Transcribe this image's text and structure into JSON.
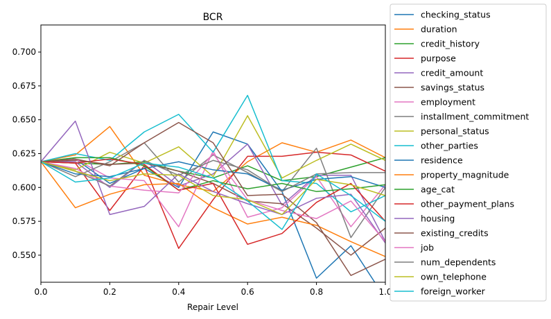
{
  "chart_data": {
    "type": "line",
    "title": "BCR",
    "xlabel": "Repair Level",
    "ylabel": "",
    "xlim": [
      0.0,
      1.0
    ],
    "ylim": [
      0.53,
      0.72
    ],
    "xticks": [
      "0.0",
      "0.2",
      "0.4",
      "0.6",
      "0.8",
      "1.0"
    ],
    "yticks": [
      "0.550",
      "0.575",
      "0.600",
      "0.625",
      "0.650",
      "0.675",
      "0.700"
    ],
    "grid": false,
    "legend_position": "outside-right",
    "x": [
      0.0,
      0.1,
      0.2,
      0.3,
      0.4,
      0.5,
      0.6,
      0.7,
      0.8,
      0.9,
      1.0
    ],
    "series": [
      {
        "name": "checking_status",
        "color": "#1f77b4",
        "values": [
          0.619,
          0.621,
          0.603,
          0.614,
          0.6,
          0.641,
          0.632,
          0.597,
          0.533,
          0.557,
          0.518
        ]
      },
      {
        "name": "duration",
        "color": "#ff7f0e",
        "values": [
          0.619,
          0.624,
          0.645,
          0.609,
          0.602,
          0.597,
          0.619,
          0.633,
          0.626,
          0.635,
          0.622
        ]
      },
      {
        "name": "credit_history",
        "color": "#2ca02c",
        "values": [
          0.619,
          0.618,
          0.617,
          0.619,
          0.612,
          0.607,
          0.616,
          0.605,
          0.608,
          0.615,
          0.622
        ]
      },
      {
        "name": "purpose",
        "color": "#d62728",
        "values": [
          0.619,
          0.618,
          0.583,
          0.616,
          0.555,
          0.591,
          0.623,
          0.623,
          0.626,
          0.624,
          0.612
        ]
      },
      {
        "name": "credit_amount",
        "color": "#9467bd",
        "values": [
          0.619,
          0.619,
          0.6,
          0.62,
          0.601,
          0.61,
          0.632,
          0.587,
          0.609,
          0.609,
          0.56
        ]
      },
      {
        "name": "savings_status",
        "color": "#8c564b",
        "values": [
          0.619,
          0.62,
          0.617,
          0.618,
          0.612,
          0.603,
          0.59,
          0.588,
          0.57,
          0.55,
          0.57
        ]
      },
      {
        "name": "employment",
        "color": "#e377c2",
        "values": [
          0.619,
          0.621,
          0.607,
          0.605,
          0.571,
          0.627,
          0.578,
          0.585,
          0.608,
          0.571,
          0.602
        ]
      },
      {
        "name": "installment_commitment",
        "color": "#7f7f7f",
        "values": [
          0.619,
          0.608,
          0.619,
          0.633,
          0.604,
          0.624,
          0.611,
          0.597,
          0.629,
          0.563,
          0.6
        ]
      },
      {
        "name": "personal_status",
        "color": "#bcbd22",
        "values": [
          0.619,
          0.613,
          0.626,
          0.618,
          0.63,
          0.608,
          0.653,
          0.607,
          0.62,
          0.632,
          0.62
        ]
      },
      {
        "name": "other_parties",
        "color": "#17becf",
        "values": [
          0.619,
          0.625,
          0.62,
          0.641,
          0.654,
          0.626,
          0.668,
          0.605,
          0.603,
          0.582,
          0.594
        ]
      },
      {
        "name": "residence",
        "color": "#1f77b4",
        "values": [
          0.619,
          0.61,
          0.608,
          0.614,
          0.619,
          0.613,
          0.61,
          0.598,
          0.606,
          0.608,
          0.6
        ]
      },
      {
        "name": "property_magnitude",
        "color": "#ff7f0e",
        "values": [
          0.619,
          0.585,
          0.595,
          0.602,
          0.603,
          0.585,
          0.573,
          0.578,
          0.572,
          0.56,
          0.549
        ]
      },
      {
        "name": "age_cat",
        "color": "#2ca02c",
        "values": [
          0.619,
          0.622,
          0.622,
          0.616,
          0.598,
          0.605,
          0.599,
          0.603,
          0.597,
          0.599,
          0.602
        ]
      },
      {
        "name": "other_payment_plans",
        "color": "#d62728",
        "values": [
          0.619,
          0.618,
          0.621,
          0.617,
          0.598,
          0.603,
          0.558,
          0.566,
          0.589,
          0.603,
          0.575
        ]
      },
      {
        "name": "housing",
        "color": "#9467bd",
        "values": [
          0.619,
          0.649,
          0.58,
          0.586,
          0.61,
          0.597,
          0.588,
          0.58,
          0.592,
          0.595,
          0.559
        ]
      },
      {
        "name": "existing_credits",
        "color": "#8c564b",
        "values": [
          0.619,
          0.621,
          0.616,
          0.633,
          0.648,
          0.633,
          0.594,
          0.595,
          0.574,
          0.535,
          0.547
        ]
      },
      {
        "name": "job",
        "color": "#e377c2",
        "values": [
          0.619,
          0.614,
          0.601,
          0.598,
          0.596,
          0.625,
          0.591,
          0.583,
          0.577,
          0.59,
          0.56
        ]
      },
      {
        "name": "num_dependents",
        "color": "#7f7f7f",
        "values": [
          0.619,
          0.612,
          0.601,
          0.62,
          0.609,
          0.62,
          0.613,
          0.597,
          0.61,
          0.611,
          0.611
        ]
      },
      {
        "name": "own_telephone",
        "color": "#bcbd22",
        "values": [
          0.619,
          0.612,
          0.605,
          0.61,
          0.609,
          0.594,
          0.591,
          0.58,
          0.606,
          0.602,
          0.594
        ]
      },
      {
        "name": "foreign_worker",
        "color": "#17becf",
        "values": [
          0.619,
          0.604,
          0.607,
          0.618,
          0.615,
          0.607,
          0.59,
          0.569,
          0.61,
          0.594,
          0.575
        ]
      }
    ]
  }
}
